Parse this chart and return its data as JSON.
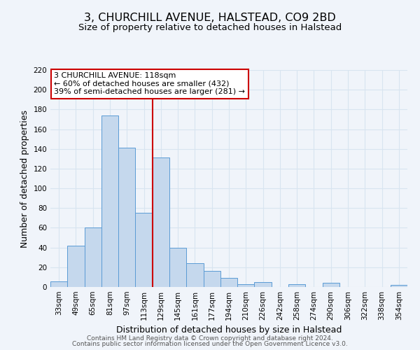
{
  "title": "3, CHURCHILL AVENUE, HALSTEAD, CO9 2BD",
  "subtitle": "Size of property relative to detached houses in Halstead",
  "xlabel": "Distribution of detached houses by size in Halstead",
  "ylabel": "Number of detached properties",
  "bar_labels": [
    "33sqm",
    "49sqm",
    "65sqm",
    "81sqm",
    "97sqm",
    "113sqm",
    "129sqm",
    "145sqm",
    "161sqm",
    "177sqm",
    "194sqm",
    "210sqm",
    "226sqm",
    "242sqm",
    "258sqm",
    "274sqm",
    "290sqm",
    "306sqm",
    "322sqm",
    "338sqm",
    "354sqm"
  ],
  "bar_heights": [
    6,
    42,
    60,
    174,
    141,
    75,
    131,
    40,
    24,
    16,
    9,
    3,
    5,
    0,
    3,
    0,
    4,
    0,
    0,
    0,
    2
  ],
  "bar_color": "#c5d8ed",
  "bar_edge_color": "#5b9bd5",
  "vline_x": 5.5,
  "vline_color": "#cc0000",
  "ylim": [
    0,
    220
  ],
  "yticks": [
    0,
    20,
    40,
    60,
    80,
    100,
    120,
    140,
    160,
    180,
    200,
    220
  ],
  "annotation_title": "3 CHURCHILL AVENUE: 118sqm",
  "annotation_line1": "← 60% of detached houses are smaller (432)",
  "annotation_line2": "39% of semi-detached houses are larger (281) →",
  "annotation_box_color": "#ffffff",
  "annotation_box_edge": "#cc0000",
  "footer1": "Contains HM Land Registry data © Crown copyright and database right 2024.",
  "footer2": "Contains public sector information licensed under the Open Government Licence v3.0.",
  "background_color": "#f0f4fa",
  "grid_color": "#d8e4f0",
  "title_fontsize": 11.5,
  "subtitle_fontsize": 9.5,
  "axis_label_fontsize": 9,
  "tick_fontsize": 7.5,
  "footer_fontsize": 6.5,
  "annotation_fontsize": 8
}
